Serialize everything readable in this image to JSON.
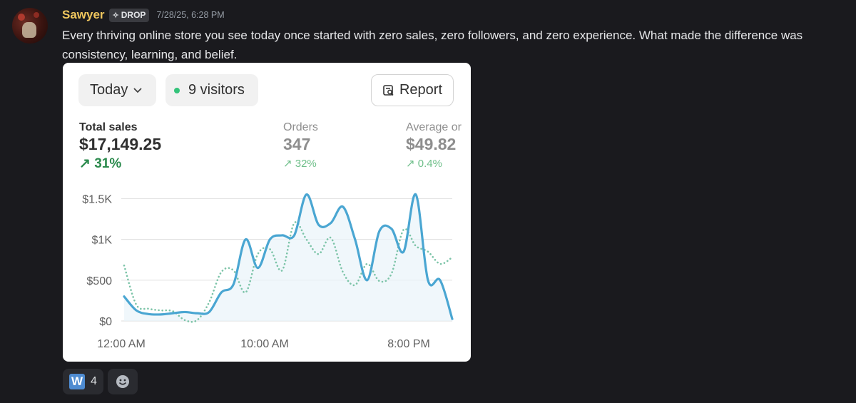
{
  "message": {
    "author": "Sawyer",
    "badge": "DROP",
    "timestamp": "7/28/25, 6:28 PM",
    "text": "Every thriving online store you see today once started with zero sales, zero followers, and zero experience. What made the difference was consistency, learning, and belief."
  },
  "card": {
    "period_label": "Today",
    "visitors_label": "9 visitors",
    "report_label": "Report",
    "metrics": [
      {
        "label": "Total sales",
        "value": "$17,149.25",
        "delta": "31%"
      },
      {
        "label": "Orders",
        "value": "347",
        "delta": "32%"
      },
      {
        "label": "Average or",
        "value": "$49.82",
        "delta": "0.4%"
      }
    ]
  },
  "chart_data": {
    "type": "line",
    "y_tick_labels": [
      "$1.5K",
      "$1K",
      "$500",
      "$0"
    ],
    "x_tick_labels": [
      "12:00 AM",
      "10:00 AM",
      "8:00 PM"
    ],
    "ylim": [
      0,
      1600
    ],
    "grid": true,
    "series": [
      {
        "style": "solid",
        "color": "#4aa6d2",
        "values": [
          300,
          130,
          85,
          80,
          95,
          110,
          95,
          110,
          350,
          450,
          1000,
          650,
          1000,
          1050,
          1050,
          1550,
          1180,
          1200,
          1400,
          1000,
          500,
          1100,
          1130,
          850,
          1550,
          500,
          500,
          25
        ]
      },
      {
        "style": "dotted",
        "color": "#7cc4a8",
        "values": [
          680,
          200,
          150,
          130,
          120,
          10,
          10,
          230,
          600,
          620,
          350,
          820,
          880,
          620,
          1200,
          1000,
          820,
          1020,
          600,
          440,
          700,
          490,
          580,
          1120,
          920,
          850,
          700,
          780
        ]
      }
    ]
  },
  "reactions": [
    {
      "emoji": "W",
      "count": "4"
    }
  ]
}
